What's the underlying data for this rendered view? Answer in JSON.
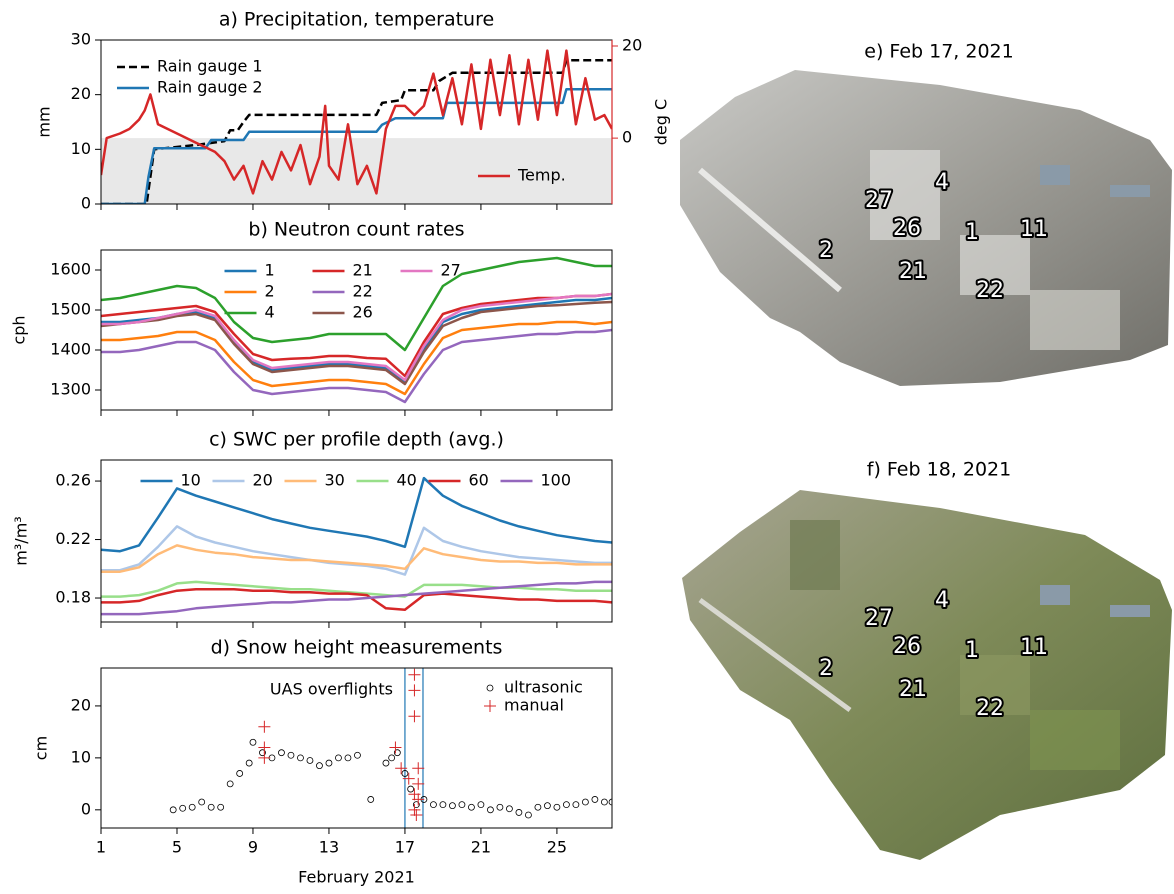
{
  "chart_data": [
    {
      "type": "line",
      "title": "a) Precipitation, temperature",
      "ylabel": "mm",
      "y2label": "deg C",
      "y2color": "#d62728",
      "xlim": [
        1,
        27.9
      ],
      "xticks": [
        1,
        5,
        9,
        13,
        17,
        21,
        25
      ],
      "ylim": [
        0,
        30
      ],
      "yticks": [
        0,
        10,
        20,
        30
      ],
      "y2lim": [
        -14.3,
        21.3
      ],
      "y2ticks": [
        0,
        20
      ],
      "shade": {
        "axis": "y2",
        "below": 0,
        "color": "#e8e8e8"
      },
      "legend": "upper left",
      "legend2": "lower right",
      "series": [
        {
          "name": "Rain gauge 1",
          "color": "#000000",
          "linestyle": "dashed",
          "x": [
            1,
            3.4,
            3.8,
            6,
            7.5,
            7.8,
            8.2,
            8.5,
            8.8,
            15.5,
            15.8,
            16.8,
            17,
            18.5,
            18.8,
            19.5,
            25.3,
            25.5,
            27.9
          ],
          "values": [
            0,
            0,
            10,
            10.8,
            11.5,
            13.5,
            13.5,
            15,
            16.3,
            16.3,
            18.5,
            19,
            20.8,
            20.8,
            22.5,
            24,
            24,
            26.3,
            26.3
          ]
        },
        {
          "name": "Rain gauge 2",
          "color": "#1f77b4",
          "x": [
            1,
            3.3,
            3.5,
            3.8,
            6.5,
            6.8,
            8.5,
            8.8,
            15.5,
            15.8,
            16.5,
            19,
            19.2,
            25.3,
            25.5,
            27.9
          ],
          "values": [
            0,
            0,
            5,
            10.2,
            10.2,
            11.7,
            11.7,
            13.2,
            13.2,
            14.5,
            15.7,
            15.7,
            18.5,
            18.5,
            21,
            21
          ]
        },
        {
          "name": "Temp.",
          "color": "#d62728",
          "axis": "y2",
          "x": [
            1,
            1.3,
            2,
            2.5,
            3,
            3.3,
            3.6,
            4,
            4.5,
            5,
            5.5,
            6,
            6.5,
            7,
            7.5,
            8,
            8.5,
            9,
            9.5,
            10,
            10.5,
            11,
            11.5,
            12,
            12.5,
            12.8,
            13,
            13.5,
            14,
            14.5,
            15,
            15.5,
            16,
            16.5,
            17,
            17.5,
            18,
            18.5,
            19,
            19.5,
            20,
            20.5,
            21,
            21.5,
            22,
            22.5,
            23,
            23.5,
            24,
            24.5,
            25,
            25.5,
            26,
            26.5,
            27,
            27.5,
            27.9
          ],
          "values": [
            -8,
            0,
            1,
            2,
            4,
            6,
            9.5,
            3,
            2,
            1,
            0,
            -1,
            -2,
            -3,
            -5,
            -9,
            -6,
            -12,
            -5,
            -9,
            -3,
            -7,
            -1.5,
            -10,
            -4,
            7,
            -6,
            -9,
            3,
            -10,
            -6,
            -12,
            2,
            7,
            7,
            5,
            7,
            14,
            5,
            13,
            3,
            16,
            2,
            17,
            5,
            18,
            3,
            17,
            4,
            19,
            5,
            19,
            3,
            13,
            4,
            5,
            2
          ]
        }
      ]
    },
    {
      "type": "line",
      "title": "b) Neutron count rates",
      "ylabel": "cph",
      "xlim": [
        1,
        27.9
      ],
      "xticks": [
        1,
        5,
        9,
        13,
        17,
        21,
        25
      ],
      "ylim": [
        1250,
        1650
      ],
      "yticks": [
        1300,
        1400,
        1500,
        1600
      ],
      "legend": "upper center",
      "legend_columns": 3,
      "x": [
        1,
        2,
        3,
        4,
        5,
        6,
        7,
        8,
        9,
        10,
        11,
        12,
        13,
        14,
        15,
        16,
        17,
        18,
        19,
        20,
        21,
        22,
        23,
        24,
        25,
        26,
        27,
        27.9
      ],
      "series": [
        {
          "name": "1",
          "color": "#1f77b4",
          "values": [
            1470,
            1470,
            1475,
            1480,
            1490,
            1495,
            1480,
            1420,
            1370,
            1350,
            1355,
            1360,
            1365,
            1365,
            1360,
            1355,
            1320,
            1400,
            1470,
            1490,
            1500,
            1505,
            1510,
            1515,
            1520,
            1525,
            1525,
            1530
          ]
        },
        {
          "name": "2",
          "color": "#ff7f0e",
          "values": [
            1425,
            1425,
            1430,
            1435,
            1445,
            1445,
            1425,
            1370,
            1325,
            1310,
            1315,
            1320,
            1325,
            1325,
            1320,
            1315,
            1290,
            1365,
            1430,
            1450,
            1455,
            1460,
            1465,
            1465,
            1470,
            1470,
            1465,
            1470
          ]
        },
        {
          "name": "4",
          "color": "#2ca02c",
          "values": [
            1525,
            1530,
            1540,
            1550,
            1560,
            1555,
            1530,
            1470,
            1430,
            1420,
            1425,
            1430,
            1440,
            1440,
            1440,
            1440,
            1400,
            1480,
            1560,
            1590,
            1600,
            1610,
            1620,
            1625,
            1630,
            1620,
            1610,
            1610
          ]
        },
        {
          "name": "21",
          "color": "#d62728",
          "values": [
            1485,
            1490,
            1495,
            1500,
            1505,
            1510,
            1495,
            1440,
            1390,
            1375,
            1378,
            1380,
            1385,
            1385,
            1380,
            1378,
            1335,
            1420,
            1490,
            1505,
            1515,
            1520,
            1525,
            1530,
            1530,
            1535,
            1535,
            1540
          ]
        },
        {
          "name": "22",
          "color": "#9467bd",
          "values": [
            1395,
            1395,
            1400,
            1410,
            1420,
            1420,
            1400,
            1345,
            1300,
            1290,
            1295,
            1300,
            1305,
            1305,
            1300,
            1295,
            1270,
            1340,
            1400,
            1420,
            1425,
            1430,
            1435,
            1440,
            1440,
            1445,
            1445,
            1450
          ]
        },
        {
          "name": "26",
          "color": "#8c564b",
          "values": [
            1460,
            1465,
            1470,
            1475,
            1485,
            1490,
            1475,
            1415,
            1365,
            1345,
            1350,
            1355,
            1360,
            1360,
            1355,
            1350,
            1315,
            1395,
            1460,
            1480,
            1495,
            1500,
            1505,
            1510,
            1512,
            1515,
            1518,
            1520
          ]
        },
        {
          "name": "27",
          "color": "#e377c2",
          "values": [
            1465,
            1465,
            1470,
            1480,
            1490,
            1500,
            1485,
            1425,
            1375,
            1355,
            1360,
            1365,
            1370,
            1370,
            1365,
            1360,
            1325,
            1410,
            1475,
            1500,
            1510,
            1515,
            1520,
            1525,
            1530,
            1535,
            1535,
            1540
          ]
        }
      ]
    },
    {
      "type": "line",
      "title": "c) SWC per profile depth (avg.)",
      "ylabel": "m³/m³",
      "xlim": [
        1,
        27.9
      ],
      "xticks": [
        1,
        5,
        9,
        13,
        17,
        21,
        25
      ],
      "ylim": [
        0.1636,
        0.2744
      ],
      "yticks": [
        0.18,
        0.22,
        0.26
      ],
      "legend": "upper center",
      "legend_columns": 6,
      "x": [
        1,
        2,
        3,
        4,
        5,
        6,
        7,
        8,
        9,
        10,
        11,
        12,
        13,
        14,
        15,
        16,
        17,
        18,
        19,
        20,
        21,
        22,
        23,
        24,
        25,
        26,
        27,
        27.9
      ],
      "series": [
        {
          "name": "10",
          "color": "#1f77b4",
          "values": [
            0.213,
            0.212,
            0.216,
            0.235,
            0.255,
            0.25,
            0.246,
            0.242,
            0.238,
            0.234,
            0.231,
            0.228,
            0.226,
            0.224,
            0.222,
            0.219,
            0.215,
            0.262,
            0.25,
            0.243,
            0.238,
            0.233,
            0.229,
            0.226,
            0.223,
            0.221,
            0.219,
            0.218
          ]
        },
        {
          "name": "20",
          "color": "#aec7e8",
          "values": [
            0.199,
            0.199,
            0.203,
            0.215,
            0.229,
            0.222,
            0.218,
            0.215,
            0.212,
            0.21,
            0.208,
            0.206,
            0.204,
            0.203,
            0.202,
            0.2,
            0.196,
            0.228,
            0.219,
            0.215,
            0.212,
            0.21,
            0.208,
            0.207,
            0.206,
            0.205,
            0.204,
            0.204
          ]
        },
        {
          "name": "30",
          "color": "#ffbb78",
          "values": [
            0.198,
            0.198,
            0.201,
            0.21,
            0.216,
            0.213,
            0.211,
            0.21,
            0.208,
            0.207,
            0.206,
            0.206,
            0.205,
            0.204,
            0.203,
            0.202,
            0.2,
            0.214,
            0.21,
            0.208,
            0.206,
            0.205,
            0.205,
            0.204,
            0.204,
            0.203,
            0.203,
            0.203
          ]
        },
        {
          "name": "40",
          "color": "#98df8a",
          "values": [
            0.181,
            0.181,
            0.182,
            0.185,
            0.19,
            0.191,
            0.19,
            0.189,
            0.188,
            0.187,
            0.186,
            0.186,
            0.185,
            0.184,
            0.183,
            0.182,
            0.181,
            0.189,
            0.189,
            0.189,
            0.188,
            0.187,
            0.187,
            0.186,
            0.186,
            0.185,
            0.185,
            0.185
          ]
        },
        {
          "name": "60",
          "color": "#d62728",
          "values": [
            0.177,
            0.177,
            0.178,
            0.182,
            0.185,
            0.186,
            0.186,
            0.186,
            0.185,
            0.185,
            0.184,
            0.184,
            0.183,
            0.183,
            0.182,
            0.173,
            0.172,
            0.182,
            0.183,
            0.182,
            0.181,
            0.18,
            0.179,
            0.179,
            0.178,
            0.178,
            0.178,
            0.177
          ]
        },
        {
          "name": "100",
          "color": "#9467bd",
          "values": [
            0.169,
            0.169,
            0.169,
            0.17,
            0.171,
            0.173,
            0.174,
            0.175,
            0.176,
            0.177,
            0.177,
            0.178,
            0.179,
            0.179,
            0.18,
            0.181,
            0.182,
            0.183,
            0.184,
            0.185,
            0.186,
            0.187,
            0.188,
            0.189,
            0.19,
            0.19,
            0.191,
            0.191
          ]
        }
      ]
    },
    {
      "type": "scatter",
      "title": "d) Snow height measurements",
      "ylabel": "cm",
      "xlabel": "February 2021",
      "xlim": [
        1,
        27.9
      ],
      "xticks": [
        1,
        5,
        9,
        13,
        17,
        21,
        25
      ],
      "ylim": [
        -3.5,
        27.3
      ],
      "yticks": [
        0,
        10,
        20
      ],
      "legend": "upper right",
      "vlines": {
        "x": [
          17,
          17.95
        ],
        "color": "#1f77b4",
        "label": "UAS overflights"
      },
      "series": [
        {
          "name": "ultrasonic",
          "color": "#000000",
          "marker": "o",
          "x": [
            4.8,
            5.3,
            5.8,
            6.3,
            6.8,
            7.3,
            7.8,
            8.3,
            8.8,
            9.0,
            9.5,
            10,
            10.5,
            11,
            11.5,
            12,
            12.5,
            13,
            13.5,
            14,
            14.5,
            15.2,
            16,
            16.3,
            16.6,
            17,
            17.3,
            17.6,
            18,
            18.5,
            19,
            19.5,
            20,
            20.5,
            21,
            21.5,
            22,
            22.5,
            23,
            23.5,
            24,
            24.5,
            25,
            25.5,
            26,
            26.5,
            27,
            27.5,
            27.9
          ],
          "values": [
            0,
            0.3,
            0.5,
            1.5,
            0.5,
            0.5,
            5,
            7,
            9,
            13,
            11,
            10,
            11,
            10.5,
            10,
            9.5,
            8.5,
            9,
            10,
            10,
            10.5,
            2,
            9,
            10,
            11,
            7,
            4,
            1,
            2,
            1,
            1,
            0.8,
            1,
            0.5,
            1,
            0,
            0.5,
            0.2,
            -0.5,
            -1,
            0.5,
            0.8,
            0.5,
            1,
            1,
            1.5,
            2,
            1.5,
            1.5
          ]
        },
        {
          "name": "manual",
          "color": "#d62728",
          "marker": "+",
          "x": [
            9.6,
            9.6,
            9.6,
            16.5,
            16.8,
            17.2,
            17.5,
            17.5,
            17.5,
            17.5,
            17.5,
            17.6,
            17.7,
            17.7,
            17.7
          ],
          "values": [
            16,
            12,
            10,
            12,
            8,
            6,
            26,
            23,
            18,
            3,
            0,
            -1,
            8,
            5,
            2
          ]
        }
      ]
    }
  ],
  "photos": [
    {
      "title": "e) Feb 17, 2021",
      "labels": [
        "4",
        "27",
        "26",
        "1",
        "11",
        "2",
        "21",
        "22"
      ]
    },
    {
      "title": "f) Feb 18, 2021",
      "labels": [
        "4",
        "27",
        "26",
        "1",
        "11",
        "2",
        "21",
        "22"
      ]
    }
  ]
}
